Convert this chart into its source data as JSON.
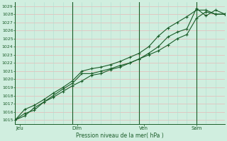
{
  "title": "Pression niveau de la mer( hPa )",
  "ylabel_values": [
    1015,
    1016,
    1017,
    1018,
    1019,
    1020,
    1021,
    1022,
    1023,
    1024,
    1025,
    1026,
    1027,
    1028,
    1029
  ],
  "ylim": [
    1014.5,
    1029.5
  ],
  "xlim": [
    0,
    22
  ],
  "xtick_positions": [
    0.5,
    6.5,
    13.5,
    19.0
  ],
  "xtick_labels": [
    "Jeu",
    "Dim",
    "Ven",
    "Sam"
  ],
  "vline_positions": [
    0,
    6,
    13,
    19
  ],
  "bg_color": "#d0eedf",
  "grid_color_h": "#e8b8b8",
  "grid_color_v": "#b0ddd0",
  "line_color": "#1a5c28",
  "line1_x": [
    0,
    1,
    2,
    3,
    4,
    5,
    6,
    7,
    8,
    9,
    10,
    11,
    12,
    13,
    14,
    15,
    16,
    17,
    18,
    19,
    20,
    21,
    22
  ],
  "line1_y": [
    1015.0,
    1015.8,
    1016.2,
    1017.2,
    1018.0,
    1018.8,
    1019.5,
    1020.7,
    1020.7,
    1021.0,
    1021.3,
    1021.7,
    1022.0,
    1022.5,
    1023.0,
    1023.5,
    1024.2,
    1025.0,
    1025.5,
    1027.5,
    1028.3,
    1028.0,
    1028.0
  ],
  "line2_x": [
    0,
    1,
    2,
    3,
    4,
    5,
    6,
    7,
    8,
    9,
    10,
    11,
    12,
    13,
    14,
    15,
    16,
    17,
    18,
    19,
    20,
    21,
    22
  ],
  "line2_y": [
    1015.0,
    1015.5,
    1016.5,
    1017.2,
    1017.8,
    1018.5,
    1019.2,
    1019.8,
    1020.5,
    1020.7,
    1021.2,
    1021.5,
    1022.0,
    1022.5,
    1023.2,
    1024.0,
    1025.2,
    1025.8,
    1026.2,
    1028.7,
    1027.8,
    1028.5,
    1028.0
  ],
  "line3_x": [
    0,
    1,
    2,
    3,
    4,
    5,
    6,
    7,
    8,
    9,
    10,
    11,
    12,
    13,
    14,
    15,
    16,
    17,
    18,
    19,
    20,
    21,
    22
  ],
  "line3_y": [
    1015.0,
    1016.3,
    1016.8,
    1017.5,
    1018.3,
    1019.0,
    1019.8,
    1021.0,
    1021.3,
    1021.5,
    1021.8,
    1022.2,
    1022.7,
    1023.2,
    1024.0,
    1025.3,
    1026.3,
    1027.0,
    1027.7,
    1028.5,
    1028.5,
    1028.0,
    1028.0
  ]
}
